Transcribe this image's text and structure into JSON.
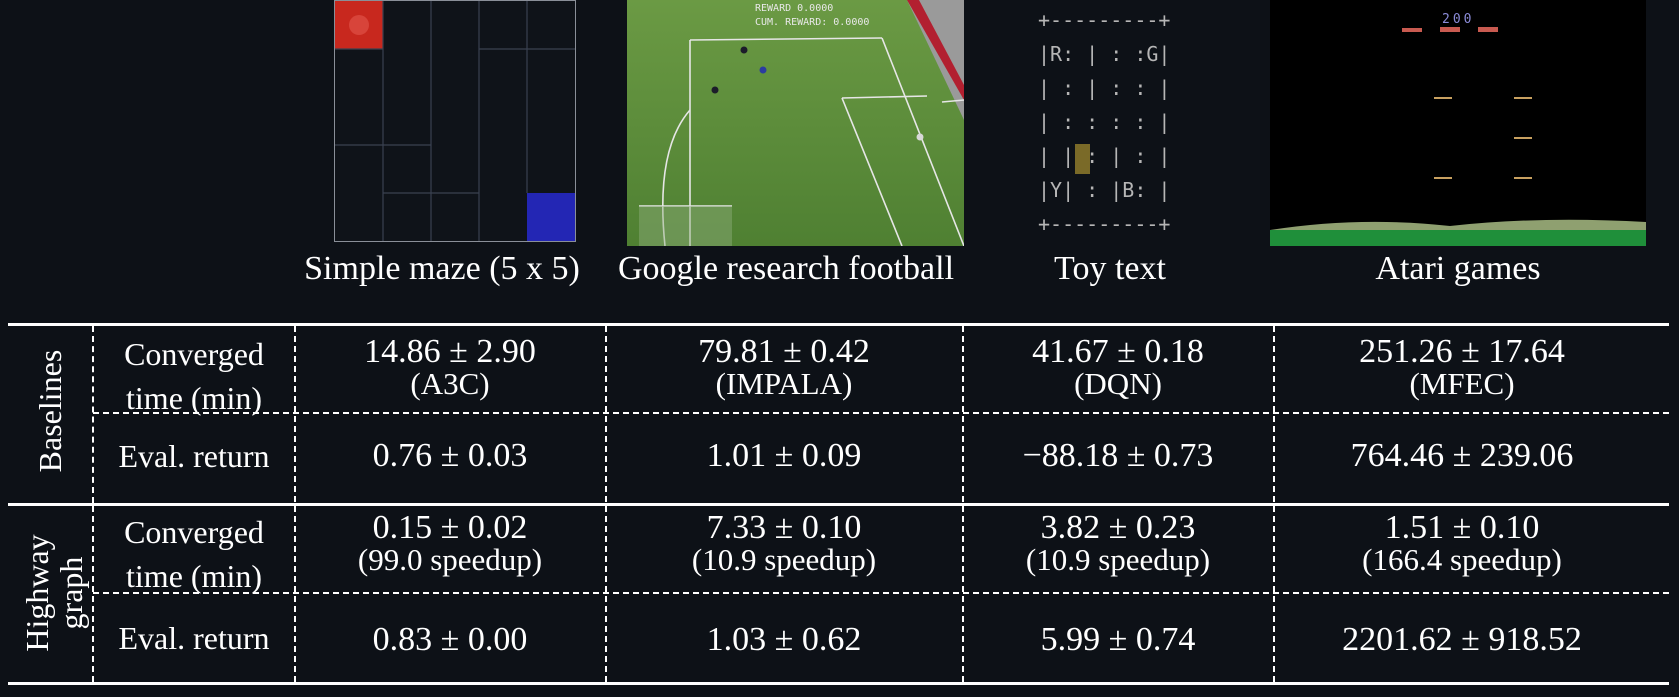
{
  "environments": [
    {
      "caption": "Simple maze (5 x 5)"
    },
    {
      "caption": "Google research football",
      "hud_reward": "REWARD 0.0000",
      "hud_cum_reward": "CUM. REWARD: 0.0000"
    },
    {
      "caption": "Toy text",
      "grid_lines": [
        "+---------+",
        "|R: | : :G|",
        "| : | : : |",
        "| : : : : |",
        "| | : | : |",
        "|Y| : |B: |",
        "+---------+"
      ]
    },
    {
      "caption": "Atari games",
      "score": "200"
    }
  ],
  "table": {
    "row_groups": [
      {
        "group": "Baselines",
        "rows": [
          {
            "metric": [
              "Converged",
              "time (min)"
            ],
            "cells": [
              {
                "value": "14.86 ± 2.90",
                "note": "(A3C)"
              },
              {
                "value": "79.81 ± 0.42",
                "note": "(IMPALA)"
              },
              {
                "value": "41.67 ± 0.18",
                "note": "(DQN)"
              },
              {
                "value": "251.26 ± 17.64",
                "note": "(MFEC)"
              }
            ]
          },
          {
            "metric": [
              "Eval. return"
            ],
            "cells": [
              {
                "value": "0.76 ± 0.03"
              },
              {
                "value": "1.01 ± 0.09"
              },
              {
                "value": "−88.18 ± 0.73"
              },
              {
                "value": "764.46 ± 239.06"
              }
            ]
          }
        ]
      },
      {
        "group": [
          "Highway",
          "graph"
        ],
        "rows": [
          {
            "metric": [
              "Converged",
              "time (min)"
            ],
            "cells": [
              {
                "value": "0.15 ± 0.02",
                "note": "(99.0 speedup)"
              },
              {
                "value": "7.33 ± 0.10",
                "note": "(10.9 speedup)"
              },
              {
                "value": "3.82 ± 0.23",
                "note": "(10.9 speedup)"
              },
              {
                "value": "1.51 ± 0.10",
                "note": "(166.4 speedup)"
              }
            ]
          },
          {
            "metric": [
              "Eval. return"
            ],
            "cells": [
              {
                "value": "0.83 ± 0.00"
              },
              {
                "value": "1.03 ± 0.62"
              },
              {
                "value": "5.99 ± 0.74"
              },
              {
                "value": "2201.62 ± 918.52"
              }
            ]
          }
        ]
      }
    ]
  },
  "colors": {
    "background": "#0d1117",
    "maze_start": "#c8281e",
    "maze_goal": "#2326b4",
    "pitch": "#5f8f3c",
    "atari_ground": "#1f8f3a"
  }
}
